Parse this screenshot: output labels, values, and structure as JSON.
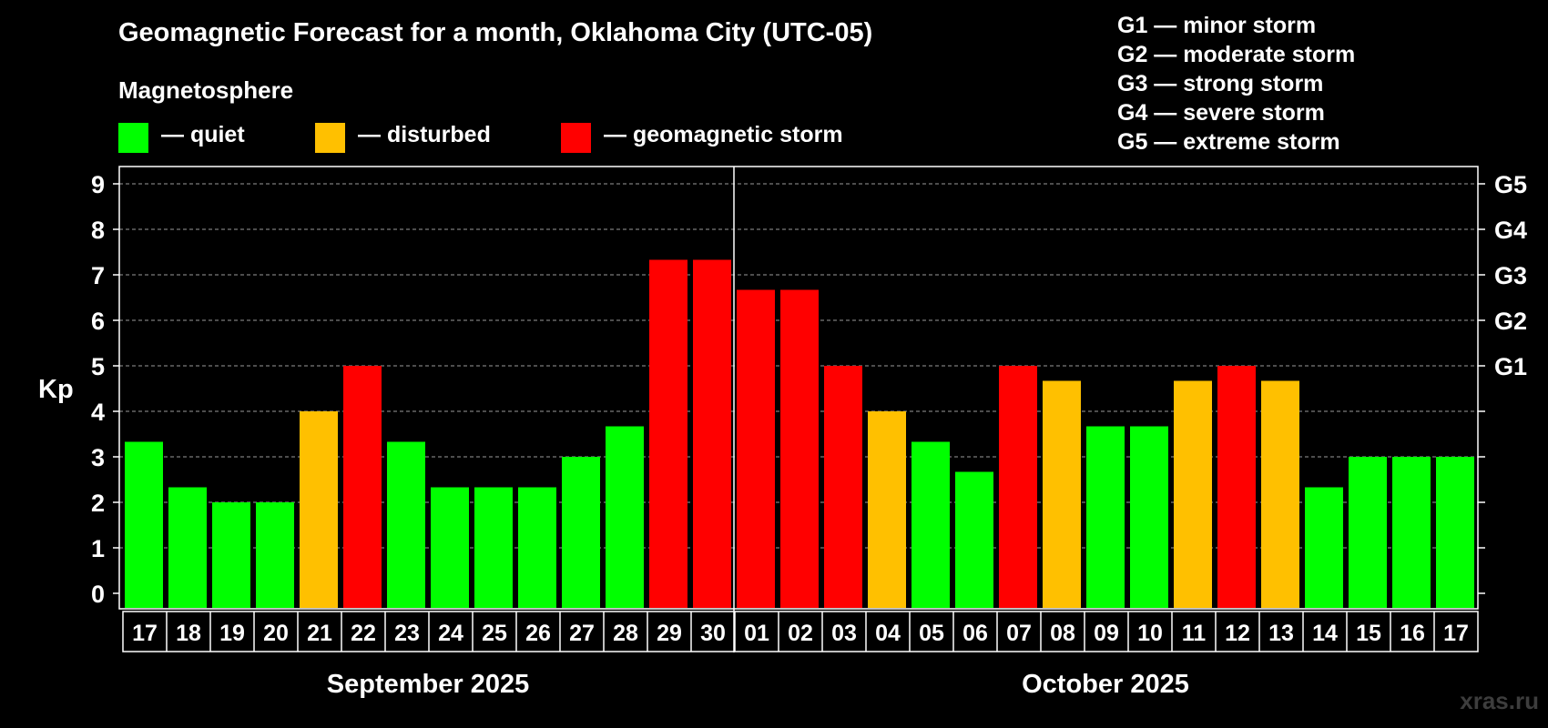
{
  "title": "Geomagnetic Forecast for a month, Oklahoma City (UTC-05)",
  "magnetosphere_label": "Magnetosphere",
  "legend": [
    {
      "label": "— quiet",
      "color": "#00ff00"
    },
    {
      "label": "— disturbed",
      "color": "#ffc000"
    },
    {
      "label": "— geomagnetic storm",
      "color": "#ff0000"
    }
  ],
  "g_legend": [
    "G1 — minor storm",
    "G2 — moderate storm",
    "G3 — strong storm",
    "G4 — severe storm",
    "G5 — extreme storm"
  ],
  "months": {
    "first": "September 2025",
    "second": "October 2025"
  },
  "watermark": "xras.ru",
  "chart_data": {
    "type": "bar",
    "ylabel": "Kp",
    "ylim": [
      0,
      9
    ],
    "yticks": [
      "0",
      "1",
      "2",
      "3",
      "4",
      "5",
      "6",
      "7",
      "8",
      "9"
    ],
    "right_axis": [
      {
        "kp": 5,
        "label": "G1"
      },
      {
        "kp": 6,
        "label": "G2"
      },
      {
        "kp": 7,
        "label": "G3"
      },
      {
        "kp": 8,
        "label": "G4"
      },
      {
        "kp": 9,
        "label": "G5"
      }
    ],
    "month_divider_after_index": 13,
    "categories": [
      "17",
      "18",
      "19",
      "20",
      "21",
      "22",
      "23",
      "24",
      "25",
      "26",
      "27",
      "28",
      "29",
      "30",
      "01",
      "02",
      "03",
      "04",
      "05",
      "06",
      "07",
      "08",
      "09",
      "10",
      "11",
      "12",
      "13",
      "14",
      "15",
      "16",
      "17"
    ],
    "values": [
      3.33,
      2.33,
      2,
      2,
      4,
      5,
      3.33,
      2.33,
      2.33,
      2.33,
      3,
      3.67,
      7.33,
      7.33,
      6.67,
      6.67,
      5,
      4,
      3.33,
      2.67,
      5,
      4.67,
      3.67,
      3.67,
      4.67,
      5,
      4.67,
      2.33,
      3,
      3,
      3
    ],
    "levels": [
      "quiet",
      "quiet",
      "quiet",
      "quiet",
      "disturbed",
      "storm",
      "quiet",
      "quiet",
      "quiet",
      "quiet",
      "quiet",
      "quiet",
      "storm",
      "storm",
      "storm",
      "storm",
      "storm",
      "disturbed",
      "quiet",
      "quiet",
      "storm",
      "disturbed",
      "quiet",
      "quiet",
      "disturbed",
      "storm",
      "disturbed",
      "quiet",
      "quiet",
      "quiet",
      "quiet"
    ],
    "level_colors": {
      "quiet": "#00ff00",
      "disturbed": "#ffc000",
      "storm": "#ff0000"
    }
  }
}
